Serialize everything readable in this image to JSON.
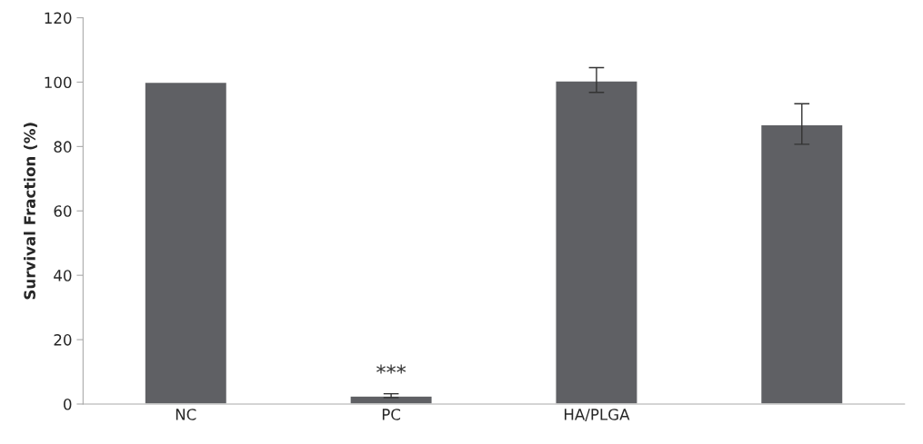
{
  "chart_data": {
    "type": "bar",
    "ylabel": "Survival Fraction (%)",
    "categories": [
      "NC",
      "PC",
      "HA/PLGA",
      null
    ],
    "values": [
      100,
      2.5,
      100.4,
      86.8
    ],
    "errors": [
      null,
      [
        2.0,
        3.2
      ],
      [
        96.8,
        104.5
      ],
      [
        80.7,
        93.3
      ]
    ],
    "color": "#5f6064",
    "ylim": [
      0,
      120
    ],
    "yticks": [
      0,
      20,
      40,
      60,
      80,
      100,
      120
    ],
    "grid": false,
    "annotations": [
      "***"
    ]
  }
}
